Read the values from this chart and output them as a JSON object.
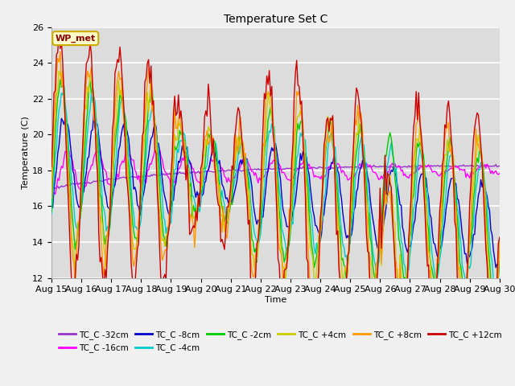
{
  "title": "Temperature Set C",
  "xlabel": "Time",
  "ylabel": "Temperature (C)",
  "ylim": [
    12,
    26
  ],
  "xlim": [
    0,
    360
  ],
  "fig_bg": "#f0f0f0",
  "plot_bg": "#dcdcdc",
  "grid_color": "#ffffff",
  "annotation_text": "WP_met",
  "annotation_bg": "#ffffcc",
  "annotation_border": "#ccaa00",
  "series_colors": {
    "TC_C -32cm": "#9933cc",
    "TC_C -16cm": "#ff00ff",
    "TC_C -8cm": "#0000cc",
    "TC_C -4cm": "#00cccc",
    "TC_C -2cm": "#00cc00",
    "TC_C +4cm": "#cccc00",
    "TC_C +8cm": "#ff9900",
    "TC_C +12cm": "#cc0000"
  },
  "xtick_labels": [
    "Aug 15",
    "Aug 16",
    "Aug 17",
    "Aug 18",
    "Aug 19",
    "Aug 20",
    "Aug 21",
    "Aug 22",
    "Aug 23",
    "Aug 24",
    "Aug 25",
    "Aug 26",
    "Aug 27",
    "Aug 28",
    "Aug 29",
    "Aug 30"
  ],
  "xtick_positions": [
    0,
    24,
    48,
    72,
    96,
    120,
    144,
    168,
    192,
    216,
    240,
    264,
    288,
    312,
    336,
    360
  ],
  "yticks": [
    12,
    14,
    16,
    18,
    20,
    22,
    24,
    26
  ]
}
